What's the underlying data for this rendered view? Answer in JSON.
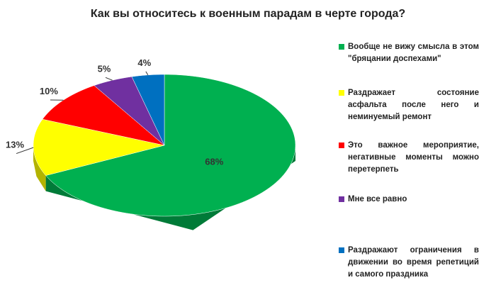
{
  "chart_data": {
    "type": "pie3d",
    "title": "Как вы относитесь к военным парадам в черте города?",
    "categories": [
      "Вообще не вижу смысла в этом \"бряцании доспехами\"",
      "Раздражает состояние асфальта после него и неминуемый ремонт",
      "Это важное мероприятие, негативные моменты можно перетерпеть",
      "Мне все равно",
      "Раздражают ограничения в движении во время репетиций и самого праздника"
    ],
    "values": [
      68,
      13,
      10,
      5,
      4
    ],
    "value_labels": [
      "68%",
      "13%",
      "10%",
      "5%",
      "4%"
    ],
    "colors": [
      "#00b050",
      "#ffff00",
      "#ff0000",
      "#7030a0",
      "#0070c0"
    ],
    "legend": "right"
  }
}
